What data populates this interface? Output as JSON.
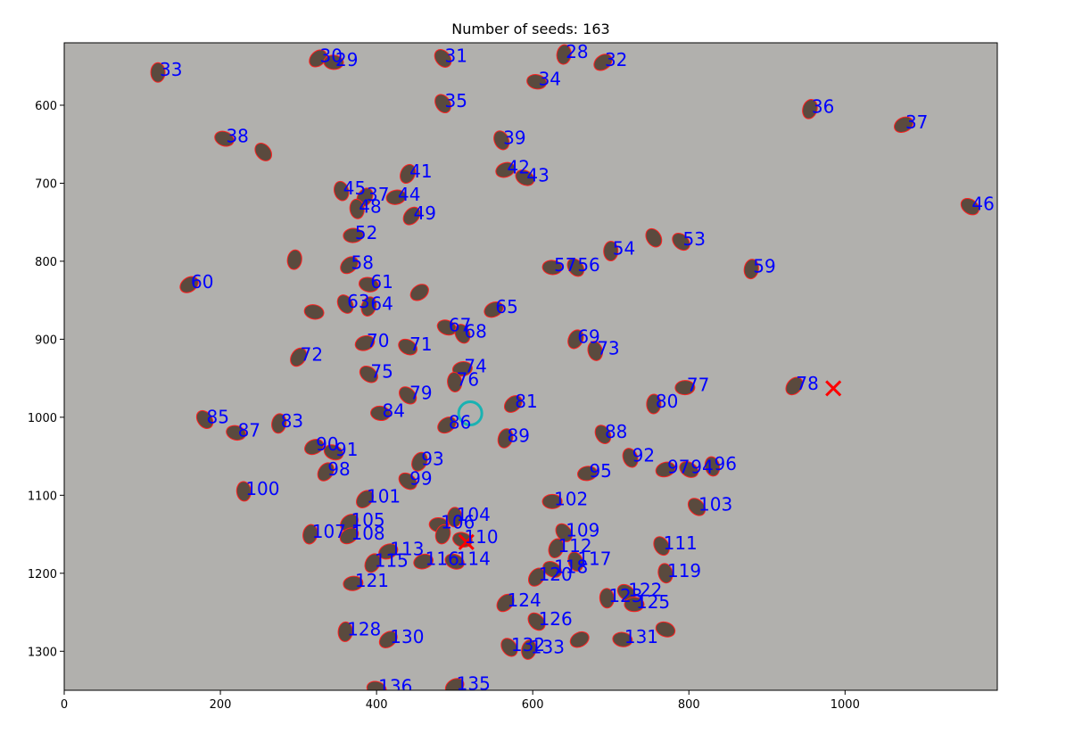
{
  "chart_data": {
    "type": "scatter",
    "title": "Number of seeds: 163",
    "xlabel": "",
    "ylabel": "",
    "xlim": [
      0,
      1195
    ],
    "ylim": [
      1350,
      520
    ],
    "y_inverted": true,
    "grid": false,
    "xticks": [
      0,
      200,
      400,
      600,
      800,
      1000
    ],
    "yticks": [
      600,
      700,
      800,
      900,
      1000,
      1100,
      1200,
      1300
    ],
    "background_color": "#b1b0ad",
    "seed_color": "#5a4a3e",
    "outline_color": "#ff2020",
    "label_color": "#0000ff",
    "marker_color": "#ff0000",
    "circle_color": "#1ab2b2",
    "seeds": [
      {
        "id": "33",
        "x": 120,
        "y": 558
      },
      {
        "id": "30",
        "x": 325,
        "y": 540
      },
      {
        "id": "29",
        "x": 345,
        "y": 545
      },
      {
        "id": "31",
        "x": 485,
        "y": 540
      },
      {
        "id": "28",
        "x": 640,
        "y": 535
      },
      {
        "id": "32",
        "x": 690,
        "y": 545
      },
      {
        "id": "34",
        "x": 605,
        "y": 570
      },
      {
        "id": "35",
        "x": 485,
        "y": 598
      },
      {
        "id": "36",
        "x": 955,
        "y": 605
      },
      {
        "id": "37",
        "x": 1075,
        "y": 625
      },
      {
        "id": "38",
        "x": 205,
        "y": 643
      },
      {
        "id": "39",
        "x": 560,
        "y": 645
      },
      {
        "id": "41",
        "x": 440,
        "y": 688
      },
      {
        "id": "42",
        "x": 565,
        "y": 683
      },
      {
        "id": "43",
        "x": 590,
        "y": 693
      },
      {
        "id": "45",
        "x": 355,
        "y": 710
      },
      {
        "id": "37",
        "x": 385,
        "y": 718
      },
      {
        "id": "44",
        "x": 425,
        "y": 718
      },
      {
        "id": "46",
        "x": 1160,
        "y": 730
      },
      {
        "id": "48",
        "x": 375,
        "y": 733
      },
      {
        "id": "49",
        "x": 445,
        "y": 742
      },
      {
        "id": "52",
        "x": 370,
        "y": 767
      },
      {
        "id": "53",
        "x": 790,
        "y": 775
      },
      {
        "id": "54",
        "x": 700,
        "y": 787
      },
      {
        "id": "58",
        "x": 365,
        "y": 805
      },
      {
        "id": "57",
        "x": 625,
        "y": 808
      },
      {
        "id": "56",
        "x": 655,
        "y": 808
      },
      {
        "id": "59",
        "x": 880,
        "y": 810
      },
      {
        "id": "60",
        "x": 160,
        "y": 830
      },
      {
        "id": "61",
        "x": 390,
        "y": 830
      },
      {
        "id": "63",
        "x": 360,
        "y": 855
      },
      {
        "id": "64",
        "x": 390,
        "y": 858
      },
      {
        "id": "65",
        "x": 550,
        "y": 862
      },
      {
        "id": "67",
        "x": 490,
        "y": 885
      },
      {
        "id": "68",
        "x": 510,
        "y": 893
      },
      {
        "id": "69",
        "x": 655,
        "y": 900
      },
      {
        "id": "70",
        "x": 385,
        "y": 905
      },
      {
        "id": "71",
        "x": 440,
        "y": 910
      },
      {
        "id": "73",
        "x": 680,
        "y": 915
      },
      {
        "id": "72",
        "x": 300,
        "y": 923
      },
      {
        "id": "74",
        "x": 510,
        "y": 938
      },
      {
        "id": "75",
        "x": 390,
        "y": 945
      },
      {
        "id": "76",
        "x": 500,
        "y": 955
      },
      {
        "id": "78",
        "x": 935,
        "y": 960
      },
      {
        "id": "77",
        "x": 795,
        "y": 962
      },
      {
        "id": "79",
        "x": 440,
        "y": 972
      },
      {
        "id": "80",
        "x": 755,
        "y": 983
      },
      {
        "id": "81",
        "x": 575,
        "y": 983
      },
      {
        "id": "84",
        "x": 405,
        "y": 995
      },
      {
        "id": "85",
        "x": 180,
        "y": 1003
      },
      {
        "id": "83",
        "x": 275,
        "y": 1008
      },
      {
        "id": "86",
        "x": 490,
        "y": 1010
      },
      {
        "id": "87",
        "x": 220,
        "y": 1020
      },
      {
        "id": "88",
        "x": 690,
        "y": 1022
      },
      {
        "id": "89",
        "x": 565,
        "y": 1027
      },
      {
        "id": "90",
        "x": 320,
        "y": 1038
      },
      {
        "id": "91",
        "x": 345,
        "y": 1045
      },
      {
        "id": "92",
        "x": 725,
        "y": 1052
      },
      {
        "id": "93",
        "x": 455,
        "y": 1057
      },
      {
        "id": "97",
        "x": 770,
        "y": 1067
      },
      {
        "id": "94",
        "x": 800,
        "y": 1067
      },
      {
        "id": "96",
        "x": 830,
        "y": 1063
      },
      {
        "id": "98",
        "x": 335,
        "y": 1070
      },
      {
        "id": "95",
        "x": 670,
        "y": 1072
      },
      {
        "id": "99",
        "x": 440,
        "y": 1082
      },
      {
        "id": "100",
        "x": 230,
        "y": 1095
      },
      {
        "id": "101",
        "x": 385,
        "y": 1105
      },
      {
        "id": "102",
        "x": 625,
        "y": 1108
      },
      {
        "id": "103",
        "x": 810,
        "y": 1115
      },
      {
        "id": "104",
        "x": 500,
        "y": 1128
      },
      {
        "id": "105",
        "x": 365,
        "y": 1135
      },
      {
        "id": "106",
        "x": 480,
        "y": 1138
      },
      {
        "id": "109",
        "x": 640,
        "y": 1148
      },
      {
        "id": "107",
        "x": 315,
        "y": 1150
      },
      {
        "id": "108",
        "x": 365,
        "y": 1152
      },
      {
        "id": "110",
        "x": 510,
        "y": 1157
      },
      {
        "id": "111",
        "x": 765,
        "y": 1165
      },
      {
        "id": "112",
        "x": 630,
        "y": 1168
      },
      {
        "id": "113",
        "x": 415,
        "y": 1172
      },
      {
        "id": "114",
        "x": 500,
        "y": 1185
      },
      {
        "id": "117",
        "x": 655,
        "y": 1185
      },
      {
        "id": "115",
        "x": 395,
        "y": 1187
      },
      {
        "id": "116",
        "x": 460,
        "y": 1185
      },
      {
        "id": "118",
        "x": 625,
        "y": 1195
      },
      {
        "id": "119",
        "x": 770,
        "y": 1200
      },
      {
        "id": "120",
        "x": 605,
        "y": 1205
      },
      {
        "id": "121",
        "x": 370,
        "y": 1213
      },
      {
        "id": "122",
        "x": 720,
        "y": 1225
      },
      {
        "id": "123",
        "x": 695,
        "y": 1232
      },
      {
        "id": "124",
        "x": 565,
        "y": 1238
      },
      {
        "id": "125",
        "x": 730,
        "y": 1240
      },
      {
        "id": "126",
        "x": 605,
        "y": 1262
      },
      {
        "id": "128",
        "x": 360,
        "y": 1275
      },
      {
        "id": "130",
        "x": 415,
        "y": 1285
      },
      {
        "id": "131",
        "x": 715,
        "y": 1285
      },
      {
        "id": "132",
        "x": 570,
        "y": 1295
      },
      {
        "id": "133",
        "x": 595,
        "y": 1298
      },
      {
        "id": "135",
        "x": 500,
        "y": 1345
      },
      {
        "id": "136",
        "x": 400,
        "y": 1348
      }
    ],
    "unlabeled_seeds": [
      {
        "x": 255,
        "y": 660
      },
      {
        "x": 295,
        "y": 798
      },
      {
        "x": 455,
        "y": 840
      },
      {
        "x": 320,
        "y": 865
      },
      {
        "x": 755,
        "y": 770
      },
      {
        "x": 485,
        "y": 1150
      },
      {
        "x": 660,
        "y": 1285
      },
      {
        "x": 770,
        "y": 1272
      }
    ],
    "x_markers": [
      {
        "x": 515,
        "y": 1160
      },
      {
        "x": 985,
        "y": 963
      }
    ],
    "circles": [
      {
        "x": 520,
        "y": 995
      }
    ]
  }
}
